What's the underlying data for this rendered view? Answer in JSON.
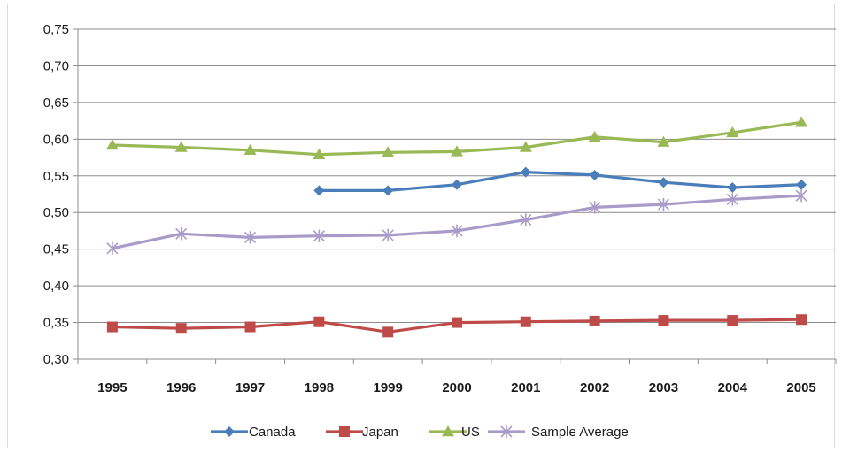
{
  "chart_data": {
    "type": "line",
    "title": "",
    "xlabel": "",
    "ylabel": "",
    "x": [
      "1995",
      "1996",
      "1997",
      "1998",
      "1999",
      "2000",
      "2001",
      "2002",
      "2003",
      "2004",
      "2005"
    ],
    "ylim": [
      0.3,
      0.75
    ],
    "yticks": [
      "0,30",
      "0,35",
      "0,40",
      "0,45",
      "0,50",
      "0,55",
      "0,60",
      "0,65",
      "0,70",
      "0,75"
    ],
    "grid": "horizontal",
    "legend_position": "bottom",
    "series": [
      {
        "name": "Canada",
        "color": "#4a7ebb",
        "marker": "diamond",
        "values": [
          null,
          null,
          null,
          0.53,
          0.53,
          0.538,
          0.555,
          0.551,
          0.541,
          0.534,
          0.538
        ]
      },
      {
        "name": "Japan",
        "color": "#be4b48",
        "marker": "square",
        "values": [
          0.344,
          0.342,
          0.344,
          0.351,
          0.337,
          0.35,
          0.351,
          0.352,
          0.353,
          0.353,
          0.354
        ]
      },
      {
        "name": "US",
        "color": "#98b954",
        "marker": "triangle",
        "values": [
          0.592,
          0.589,
          0.585,
          0.579,
          0.582,
          0.583,
          0.589,
          0.603,
          0.596,
          0.609,
          0.623
        ]
      },
      {
        "name": "Sample Average",
        "color": "#a99bc9",
        "marker": "asterisk",
        "values": [
          0.451,
          0.471,
          0.466,
          0.468,
          0.469,
          0.475,
          0.49,
          0.507,
          0.511,
          0.518,
          0.523
        ]
      }
    ]
  }
}
